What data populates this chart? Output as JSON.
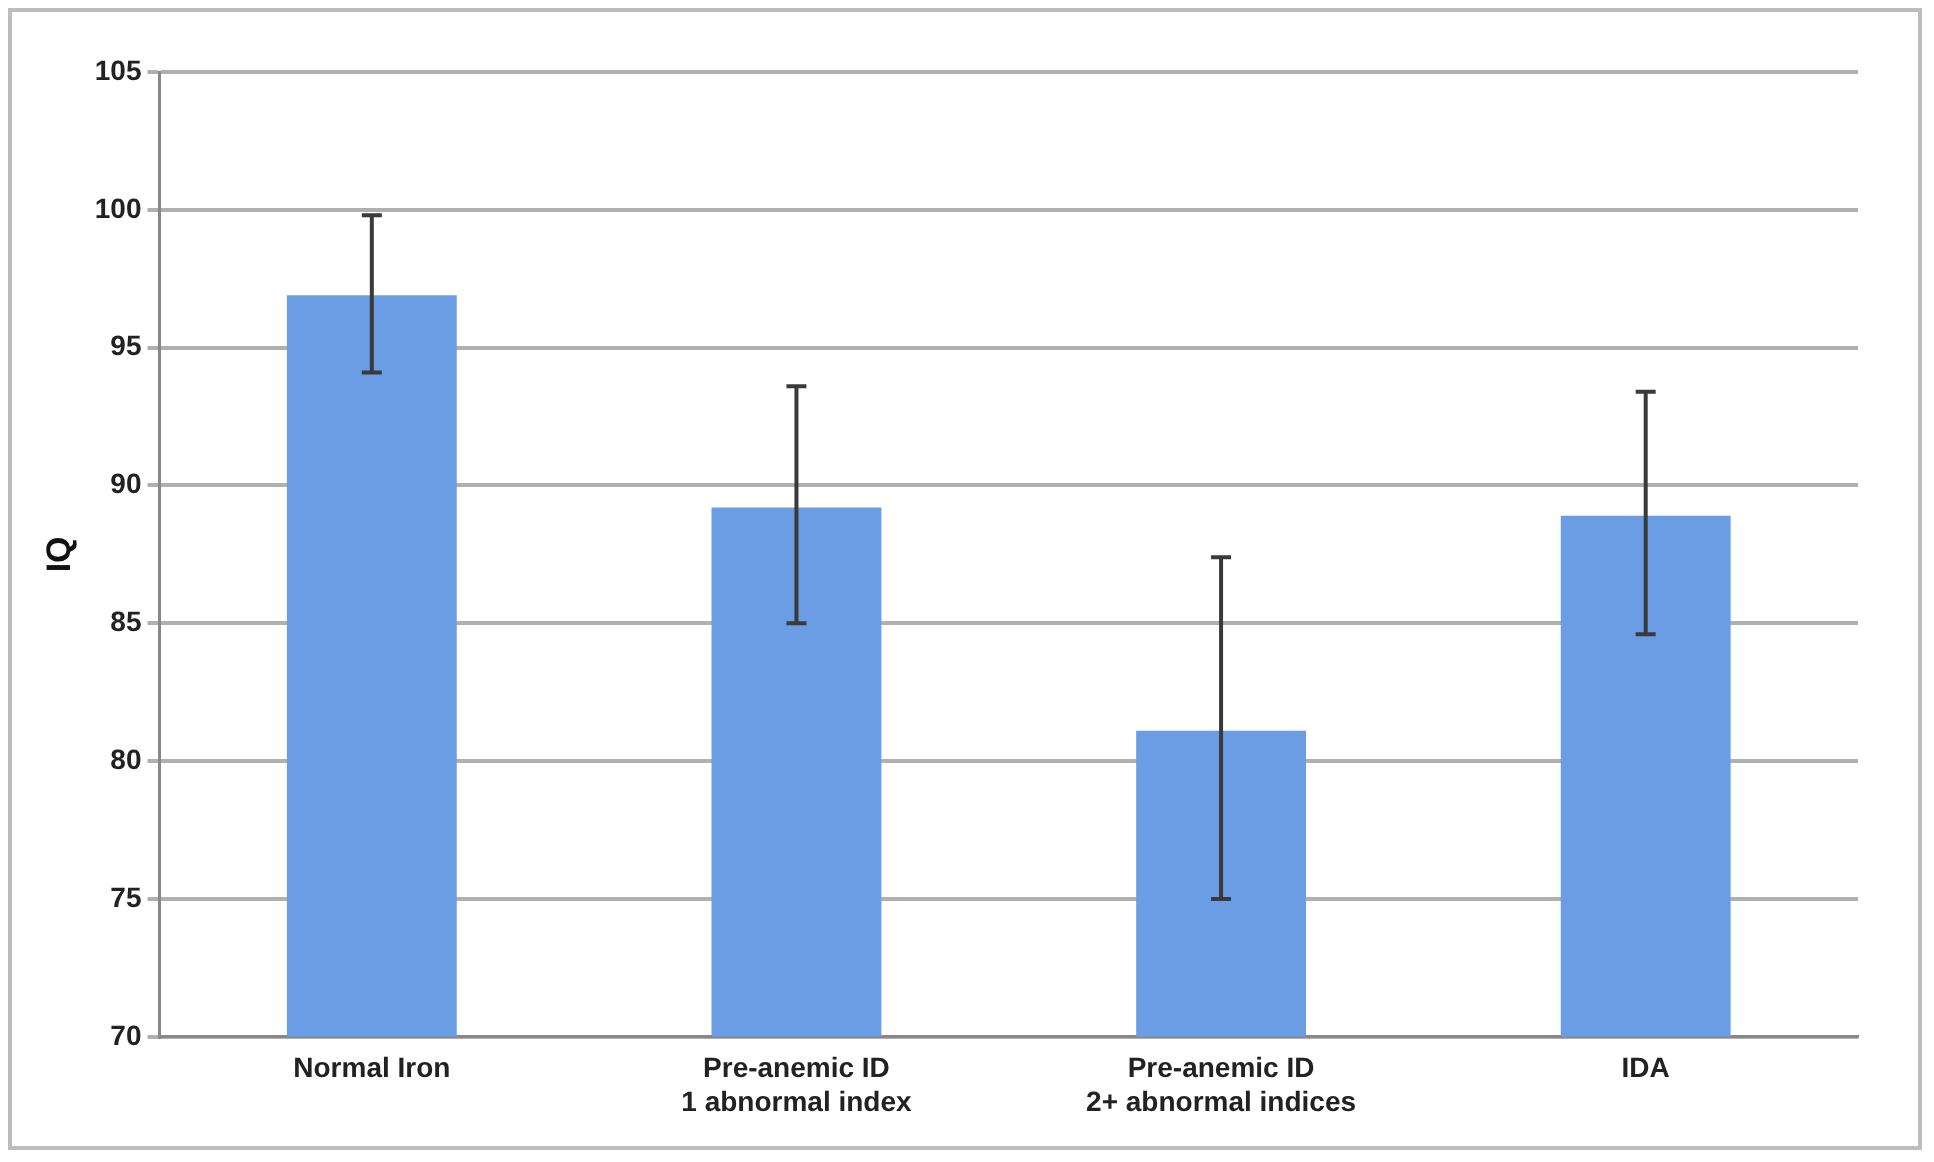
{
  "chart_data": {
    "type": "bar",
    "ylabel": "IQ",
    "categories": [
      "Normal Iron",
      "Pre-anemic ID\n1 abnormal index",
      "Pre-anemic ID\n2+ abnormal indices",
      "IDA"
    ],
    "values": [
      96.9,
      89.2,
      81.1,
      88.9
    ],
    "errors": [
      [
        94.1,
        99.8
      ],
      [
        85.0,
        93.6
      ],
      [
        75.0,
        87.4
      ],
      [
        84.6,
        93.4
      ]
    ],
    "color": "#6a9de3",
    "ylim": [
      70,
      105
    ],
    "yticks": [
      70,
      75,
      80,
      85,
      90,
      95,
      100,
      105
    ],
    "grid": "y",
    "legend": false
  }
}
